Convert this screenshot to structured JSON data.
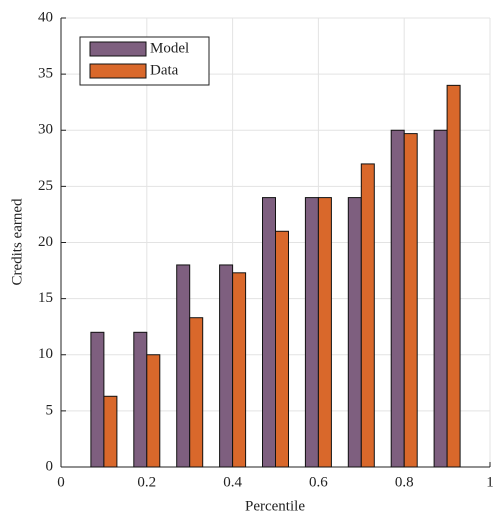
{
  "chart_data": {
    "type": "bar",
    "x_label": "Percentile",
    "y_label": "Credits earned",
    "x": [
      0.1,
      0.2,
      0.3,
      0.4,
      0.5,
      0.6,
      0.7,
      0.8,
      0.9
    ],
    "series": [
      {
        "name": "Model",
        "color": "#7e5f7f",
        "values": [
          12,
          12,
          18,
          18,
          24,
          24,
          24,
          30,
          30
        ]
      },
      {
        "name": "Data",
        "color": "#d9682b",
        "values": [
          6.3,
          10,
          13.3,
          17.3,
          21,
          24,
          27,
          29.7,
          34
        ]
      }
    ],
    "xlim": [
      0,
      1
    ],
    "xticks": [
      0,
      0.2,
      0.4,
      0.6,
      0.8,
      1
    ],
    "ylim": [
      0,
      40
    ],
    "yticks": [
      0,
      5,
      10,
      15,
      20,
      25,
      30,
      35,
      40
    ],
    "grid": true,
    "legend": "upper left"
  }
}
